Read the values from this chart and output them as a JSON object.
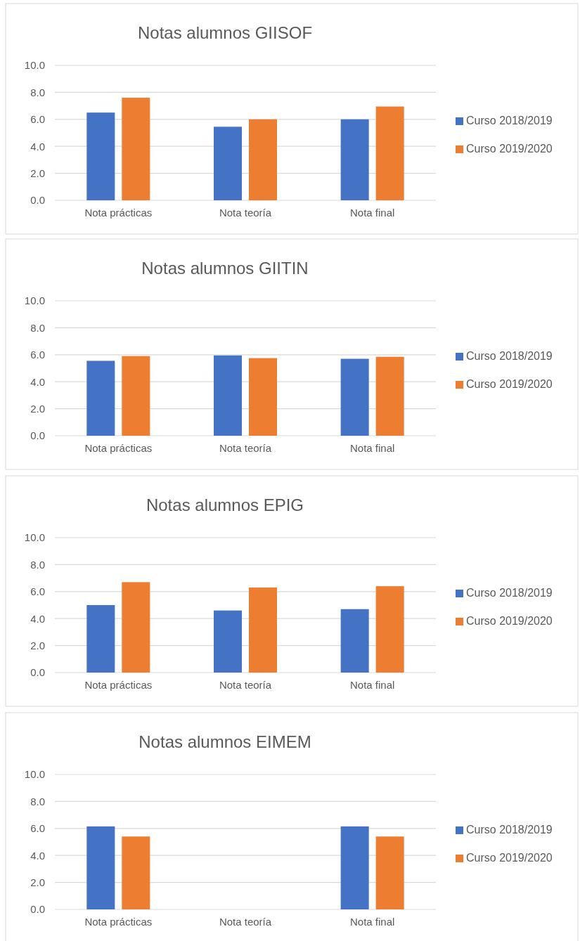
{
  "chart_data": [
    {
      "type": "bar",
      "title": "Notas alumnos GIISOF",
      "categories": [
        "Nota prácticas",
        "Nota teoría",
        "Nota final"
      ],
      "series": [
        {
          "name": "Curso 2018/2019",
          "color": "#4472c4",
          "values": [
            6.5,
            5.45,
            6.0
          ]
        },
        {
          "name": "Curso 2019/2020",
          "color": "#ed7d31",
          "values": [
            7.6,
            6.0,
            6.95
          ]
        }
      ],
      "ylim": [
        0,
        10
      ],
      "yticks": [
        {
          "value": 0,
          "label": "0.0"
        },
        {
          "value": 2,
          "label": "2.0"
        },
        {
          "value": 4,
          "label": "4.0"
        },
        {
          "value": 6,
          "label": "6.0"
        },
        {
          "value": 8,
          "label": "8.0"
        },
        {
          "value": 10,
          "label": "10.0"
        }
      ],
      "grid": "y",
      "legend": "right"
    },
    {
      "type": "bar",
      "title": "Notas alumnos GIITIN",
      "categories": [
        "Nota prácticas",
        "Nota teoría",
        "Nota final"
      ],
      "series": [
        {
          "name": "Curso 2018/2019",
          "color": "#4472c4",
          "values": [
            5.55,
            5.95,
            5.7
          ]
        },
        {
          "name": "Curso 2019/2020",
          "color": "#ed7d31",
          "values": [
            5.9,
            5.75,
            5.85
          ]
        }
      ],
      "ylim": [
        0,
        10
      ],
      "yticks": [
        {
          "value": 0,
          "label": "0.0"
        },
        {
          "value": 2,
          "label": "2.0"
        },
        {
          "value": 4,
          "label": "4.0"
        },
        {
          "value": 6,
          "label": "6.0"
        },
        {
          "value": 8,
          "label": "8.0"
        },
        {
          "value": 10,
          "label": "10.0"
        }
      ],
      "grid": "y",
      "legend": "right"
    },
    {
      "type": "bar",
      "title": "Notas alumnos EPIG",
      "categories": [
        "Nota prácticas",
        "Nota teoría",
        "Nota final"
      ],
      "series": [
        {
          "name": "Curso 2018/2019",
          "color": "#4472c4",
          "values": [
            5.0,
            4.6,
            4.7
          ]
        },
        {
          "name": "Curso 2019/2020",
          "color": "#ed7d31",
          "values": [
            6.7,
            6.3,
            6.4
          ]
        }
      ],
      "ylim": [
        0,
        10
      ],
      "yticks": [
        {
          "value": 0,
          "label": "0.0"
        },
        {
          "value": 2,
          "label": "2.0"
        },
        {
          "value": 4,
          "label": "4.0"
        },
        {
          "value": 6,
          "label": "6.0"
        },
        {
          "value": 8,
          "label": "8.0"
        },
        {
          "value": 10,
          "label": "10.0"
        }
      ],
      "grid": "y",
      "legend": "right"
    },
    {
      "type": "bar",
      "title": "Notas alumnos EIMEM",
      "categories": [
        "Nota prácticas",
        "Nota teoría",
        "Nota final"
      ],
      "series": [
        {
          "name": "Curso 2018/2019",
          "color": "#4472c4",
          "values": [
            6.15,
            null,
            6.15
          ]
        },
        {
          "name": "Curso 2019/2020",
          "color": "#ed7d31",
          "values": [
            5.4,
            null,
            5.4
          ]
        }
      ],
      "ylim": [
        0,
        10
      ],
      "yticks": [
        {
          "value": 0,
          "label": "0.0"
        },
        {
          "value": 2,
          "label": "2.0"
        },
        {
          "value": 4,
          "label": "4.0"
        },
        {
          "value": 6,
          "label": "6.0"
        },
        {
          "value": 8,
          "label": "8.0"
        },
        {
          "value": 10,
          "label": "10.0"
        }
      ],
      "grid": "y",
      "legend": "right"
    }
  ]
}
